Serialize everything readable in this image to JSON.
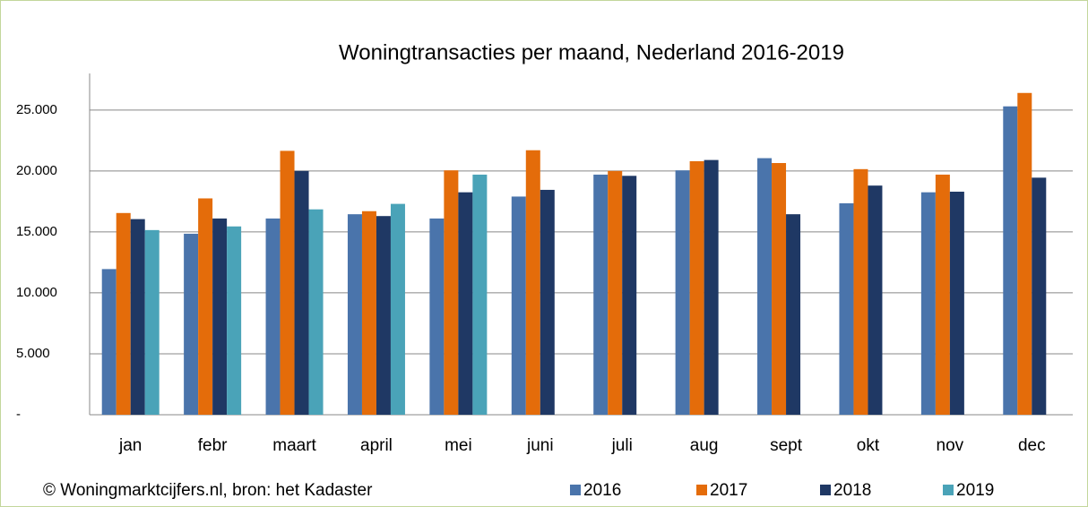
{
  "chart_data": {
    "type": "bar",
    "title": "Woningtransacties per maand, Nederland 2016-2019",
    "source": "© Woningmarktcijfers.nl, bron: het Kadaster",
    "categories": [
      "jan",
      "febr",
      "maart",
      "april",
      "mei",
      "juni",
      "juli",
      "aug",
      "sept",
      "okt",
      "nov",
      "dec"
    ],
    "series": [
      {
        "name": "2016",
        "color": "#4a74ab",
        "values": [
          11950,
          14850,
          16100,
          16450,
          16100,
          17900,
          19700,
          20050,
          21050,
          17350,
          18250,
          25300
        ]
      },
      {
        "name": "2017",
        "color": "#e46c0a",
        "values": [
          16550,
          17750,
          21650,
          16700,
          20050,
          21700,
          20000,
          20800,
          20650,
          20150,
          19700,
          26400
        ]
      },
      {
        "name": "2018",
        "color": "#1f3864",
        "values": [
          16050,
          16100,
          20000,
          16300,
          18250,
          18450,
          19600,
          20900,
          16450,
          18800,
          18300,
          19450
        ]
      },
      {
        "name": "2019",
        "color": "#4aa3b8",
        "values": [
          15150,
          15450,
          16850,
          17300,
          19700,
          null,
          null,
          null,
          null,
          null,
          null,
          null
        ]
      }
    ],
    "ylim": [
      0,
      28000
    ],
    "yticks": [
      {
        "value": 0,
        "label": "-"
      },
      {
        "value": 5000,
        "label": "5.000"
      },
      {
        "value": 10000,
        "label": "10.000"
      },
      {
        "value": 15000,
        "label": "15.000"
      },
      {
        "value": 20000,
        "label": "20.000"
      },
      {
        "value": 25000,
        "label": "25.000"
      }
    ],
    "grid": true,
    "legend": "bottom"
  }
}
